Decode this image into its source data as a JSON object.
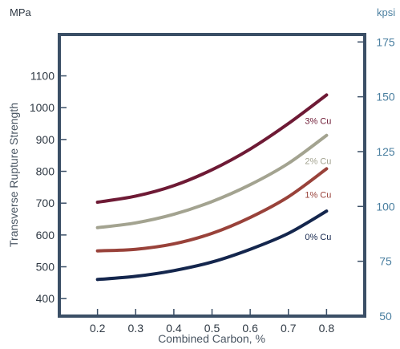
{
  "colors": {
    "frame": "#3b4f66",
    "primary_axis_text": "#2f3944",
    "secondary_axis_text": "#4a7fa0",
    "axis_title": "#4a5663"
  },
  "chart_data": {
    "type": "line",
    "xlabel": "Combined Carbon, %",
    "ylabel": "Transverse Rupture Strength",
    "y_unit": "MPa",
    "y2_unit": "kpsi",
    "x_ticks": [
      "0.2",
      "0.3",
      "0.4",
      "0.5",
      "0.6",
      "0.7",
      "0.8"
    ],
    "y_ticks": [
      "400",
      "500",
      "600",
      "700",
      "800",
      "900",
      "1000",
      "1100"
    ],
    "y2_ticks": [
      "50",
      "75",
      "100",
      "125",
      "150",
      "175"
    ],
    "xlim": [
      0.1,
      0.9
    ],
    "ylim": [
      345,
      1230
    ],
    "y2lim": [
      50.0,
      178.4
    ],
    "grid": false,
    "series": [
      {
        "name": "3% Cu",
        "color": "#6e1a35",
        "x": [
          0.2,
          0.3,
          0.4,
          0.5,
          0.6,
          0.7,
          0.8
        ],
        "y": [
          703,
          722,
          755,
          805,
          870,
          950,
          1040
        ]
      },
      {
        "name": "2% Cu",
        "color": "#a3a390",
        "x": [
          0.2,
          0.3,
          0.4,
          0.5,
          0.6,
          0.7,
          0.8
        ],
        "y": [
          623,
          638,
          665,
          705,
          758,
          825,
          913
        ]
      },
      {
        "name": "1% Cu",
        "color": "#99423a",
        "x": [
          0.2,
          0.3,
          0.4,
          0.5,
          0.6,
          0.7,
          0.8
        ],
        "y": [
          550,
          555,
          572,
          605,
          655,
          720,
          808
        ]
      },
      {
        "name": "0% Cu",
        "color": "#14264d",
        "x": [
          0.2,
          0.3,
          0.4,
          0.5,
          0.6,
          0.7,
          0.8
        ],
        "y": [
          460,
          470,
          488,
          515,
          555,
          605,
          675
        ]
      }
    ]
  }
}
